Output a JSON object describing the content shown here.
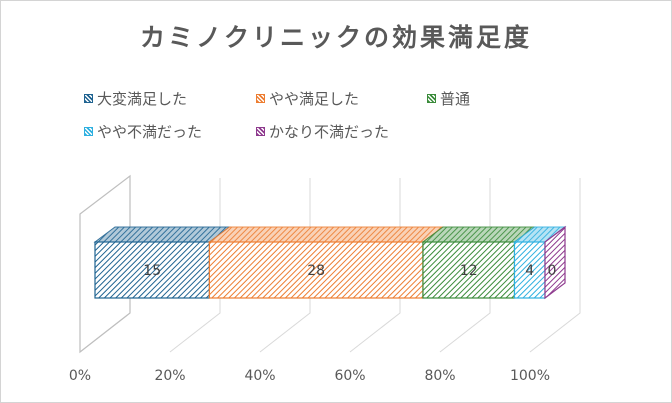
{
  "chart_data": {
    "type": "bar",
    "orientation": "horizontal-stacked-100-3d",
    "title": "カミノクリニックの効果満足度",
    "categories": [
      ""
    ],
    "series": [
      {
        "name": "大変満足した",
        "values": [
          15
        ],
        "color": "#1F6391"
      },
      {
        "name": "やや満足した",
        "values": [
          28
        ],
        "color": "#ED7D31"
      },
      {
        "name": "普通",
        "values": [
          12
        ],
        "color": "#3A8B3A"
      },
      {
        "name": "やや不満だった",
        "values": [
          4
        ],
        "color": "#2EB0E0"
      },
      {
        "name": "かなり不満だった",
        "values": [
          0
        ],
        "color": "#8E3A8E"
      }
    ],
    "xaxis_ticks": [
      "0%",
      "20%",
      "40%",
      "60%",
      "80%",
      "100%"
    ],
    "xlim": [
      0,
      100
    ],
    "grid": true,
    "legend_position": "top"
  }
}
